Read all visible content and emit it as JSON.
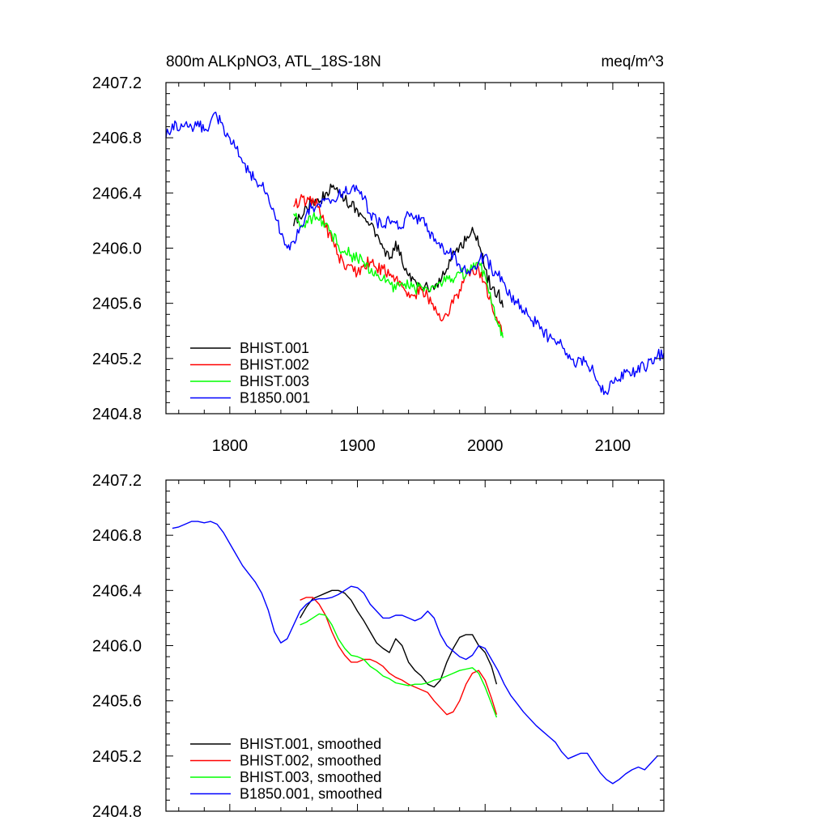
{
  "chart_data": [
    {
      "type": "line",
      "title": "800m ALKpNO3, ATL_18S-18N",
      "units": "meq/m^3",
      "xlim": [
        1750,
        2140
      ],
      "ylim": [
        2404.8,
        2407.2
      ],
      "x_ticks": [
        "1800",
        "1900",
        "2000",
        "2100"
      ],
      "y_ticks": [
        "2404.8",
        "2405.2",
        "2405.6",
        "2406.0",
        "2406.4",
        "2406.8",
        "2407.2"
      ],
      "legend_position": "bottom-left",
      "series": [
        {
          "name": "BHIST.001",
          "color": "#000000",
          "x": [
            1850,
            1855,
            1860,
            1865,
            1870,
            1875,
            1880,
            1885,
            1890,
            1895,
            1900,
            1905,
            1910,
            1915,
            1920,
            1925,
            1930,
            1935,
            1940,
            1945,
            1950,
            1955,
            1960,
            1965,
            1970,
            1975,
            1980,
            1985,
            1990,
            1995,
            2000,
            2005,
            2010,
            2014
          ],
          "values": [
            2406.16,
            2406.22,
            2406.3,
            2406.35,
            2406.33,
            2406.4,
            2406.44,
            2406.4,
            2406.35,
            2406.3,
            2406.28,
            2406.22,
            2406.17,
            2406.1,
            2406.0,
            2405.92,
            2406.05,
            2405.9,
            2405.8,
            2405.77,
            2405.7,
            2405.72,
            2405.7,
            2405.75,
            2405.85,
            2405.98,
            2406.02,
            2406.05,
            2406.15,
            2406.02,
            2405.85,
            2405.7,
            2405.68,
            2405.57
          ]
        },
        {
          "name": "BHIST.002",
          "color": "#ff0000",
          "x": [
            1850,
            1855,
            1860,
            1865,
            1870,
            1875,
            1880,
            1885,
            1890,
            1895,
            1900,
            1905,
            1910,
            1915,
            1920,
            1925,
            1930,
            1935,
            1940,
            1945,
            1950,
            1955,
            1960,
            1965,
            1970,
            1975,
            1980,
            1985,
            1990,
            1995,
            2000,
            2005,
            2010,
            2014
          ],
          "values": [
            2406.3,
            2406.35,
            2406.33,
            2406.36,
            2406.3,
            2406.15,
            2406.05,
            2405.95,
            2405.85,
            2405.88,
            2405.82,
            2405.88,
            2405.9,
            2405.85,
            2405.85,
            2405.8,
            2405.78,
            2405.72,
            2405.68,
            2405.66,
            2405.7,
            2405.65,
            2405.55,
            2405.48,
            2405.52,
            2405.6,
            2405.7,
            2405.8,
            2405.85,
            2405.85,
            2405.75,
            2405.6,
            2405.45,
            2405.38
          ]
        },
        {
          "name": "BHIST.003",
          "color": "#00ff00",
          "x": [
            1850,
            1855,
            1860,
            1865,
            1870,
            1875,
            1880,
            1885,
            1890,
            1895,
            1900,
            1905,
            1910,
            1915,
            1920,
            1925,
            1930,
            1935,
            1940,
            1945,
            1950,
            1955,
            1960,
            1965,
            1970,
            1975,
            1980,
            1985,
            1990,
            1995,
            2000,
            2005,
            2010,
            2014
          ],
          "values": [
            2406.25,
            2406.15,
            2406.2,
            2406.22,
            2406.2,
            2406.18,
            2406.1,
            2406.02,
            2405.98,
            2405.95,
            2405.92,
            2405.9,
            2405.82,
            2405.8,
            2405.78,
            2405.75,
            2405.7,
            2405.75,
            2405.72,
            2405.7,
            2405.72,
            2405.7,
            2405.72,
            2405.75,
            2405.8,
            2405.75,
            2405.82,
            2405.8,
            2405.85,
            2405.9,
            2405.8,
            2405.6,
            2405.45,
            2405.35
          ]
        },
        {
          "name": "B1850.001",
          "color": "#0000ff",
          "x": [
            1750,
            1755,
            1760,
            1765,
            1770,
            1775,
            1780,
            1785,
            1790,
            1795,
            1800,
            1805,
            1810,
            1815,
            1820,
            1825,
            1830,
            1835,
            1840,
            1845,
            1850,
            1855,
            1860,
            1865,
            1870,
            1875,
            1880,
            1885,
            1890,
            1895,
            1900,
            1905,
            1910,
            1915,
            1920,
            1925,
            1930,
            1935,
            1940,
            1945,
            1950,
            1955,
            1960,
            1965,
            1970,
            1975,
            1980,
            1985,
            1990,
            1995,
            2000,
            2005,
            2010,
            2015,
            2020,
            2025,
            2030,
            2035,
            2040,
            2045,
            2050,
            2055,
            2060,
            2065,
            2070,
            2075,
            2080,
            2085,
            2090,
            2095,
            2100,
            2105,
            2110,
            2115,
            2120,
            2125,
            2130,
            2135,
            2140
          ],
          "values": [
            2406.8,
            2406.9,
            2406.85,
            2406.9,
            2406.88,
            2406.92,
            2406.85,
            2406.92,
            2406.95,
            2406.88,
            2406.8,
            2406.72,
            2406.62,
            2406.55,
            2406.5,
            2406.45,
            2406.38,
            2406.25,
            2406.1,
            2406.0,
            2406.05,
            2406.15,
            2406.25,
            2406.3,
            2406.32,
            2406.36,
            2406.35,
            2406.38,
            2406.4,
            2406.42,
            2406.42,
            2406.36,
            2406.25,
            2406.2,
            2406.15,
            2406.2,
            2406.18,
            2406.15,
            2406.25,
            2406.22,
            2406.22,
            2406.12,
            2406.05,
            2406.0,
            2405.98,
            2405.95,
            2405.88,
            2405.82,
            2405.85,
            2405.9,
            2405.95,
            2405.85,
            2405.8,
            2405.75,
            2405.65,
            2405.6,
            2405.55,
            2405.5,
            2405.45,
            2405.4,
            2405.35,
            2405.32,
            2405.3,
            2405.2,
            2405.15,
            2405.2,
            2405.15,
            2405.1,
            2405.0,
            2404.95,
            2405.02,
            2405.05,
            2405.1,
            2405.08,
            2405.15,
            2405.12,
            2405.2,
            2405.22,
            2405.24
          ]
        }
      ]
    },
    {
      "type": "line",
      "xlim": [
        1750,
        2140
      ],
      "ylim": [
        2404.8,
        2407.2
      ],
      "y_ticks": [
        "2404.8",
        "2405.2",
        "2405.6",
        "2406.0",
        "2406.4",
        "2406.8",
        "2407.2"
      ],
      "legend_position": "bottom-left",
      "series": [
        {
          "name": "BHIST.001, smoothed",
          "color": "#000000",
          "x": [
            1855,
            1860,
            1865,
            1870,
            1875,
            1880,
            1885,
            1890,
            1895,
            1900,
            1905,
            1910,
            1915,
            1920,
            1925,
            1930,
            1935,
            1940,
            1945,
            1950,
            1955,
            1960,
            1965,
            1970,
            1975,
            1980,
            1985,
            1990,
            1995,
            2000,
            2005,
            2009
          ],
          "values": [
            2406.2,
            2406.28,
            2406.34,
            2406.36,
            2406.38,
            2406.4,
            2406.4,
            2406.38,
            2406.33,
            2406.25,
            2406.18,
            2406.1,
            2406.02,
            2405.98,
            2405.95,
            2406.05,
            2406.0,
            2405.88,
            2405.82,
            2405.78,
            2405.72,
            2405.7,
            2405.75,
            2405.88,
            2405.98,
            2406.06,
            2406.08,
            2406.08,
            2406.0,
            2405.95,
            2405.85,
            2405.72
          ]
        },
        {
          "name": "BHIST.002, smoothed",
          "color": "#ff0000",
          "x": [
            1855,
            1860,
            1865,
            1870,
            1875,
            1880,
            1885,
            1890,
            1895,
            1900,
            1905,
            1910,
            1915,
            1920,
            1925,
            1930,
            1935,
            1940,
            1945,
            1950,
            1955,
            1960,
            1965,
            1970,
            1975,
            1980,
            1985,
            1990,
            1995,
            2000,
            2005,
            2009
          ],
          "values": [
            2406.33,
            2406.35,
            2406.35,
            2406.3,
            2406.22,
            2406.1,
            2406.0,
            2405.93,
            2405.88,
            2405.88,
            2405.9,
            2405.9,
            2405.88,
            2405.85,
            2405.8,
            2405.77,
            2405.75,
            2405.72,
            2405.7,
            2405.68,
            2405.66,
            2405.6,
            2405.55,
            2405.5,
            2405.52,
            2405.6,
            2405.72,
            2405.8,
            2405.82,
            2405.75,
            2405.62,
            2405.5
          ]
        },
        {
          "name": "BHIST.003, smoothed",
          "color": "#00ff00",
          "x": [
            1855,
            1860,
            1865,
            1870,
            1875,
            1880,
            1885,
            1890,
            1895,
            1900,
            1905,
            1910,
            1915,
            1920,
            1925,
            1930,
            1935,
            1940,
            1945,
            1950,
            1955,
            1960,
            1965,
            1970,
            1975,
            1980,
            1985,
            1990,
            1995,
            2000,
            2005,
            2009
          ],
          "values": [
            2406.15,
            2406.17,
            2406.2,
            2406.23,
            2406.22,
            2406.15,
            2406.05,
            2405.98,
            2405.93,
            2405.92,
            2405.9,
            2405.85,
            2405.82,
            2405.78,
            2405.76,
            2405.73,
            2405.72,
            2405.71,
            2405.72,
            2405.72,
            2405.73,
            2405.75,
            2405.76,
            2405.78,
            2405.8,
            2405.82,
            2405.83,
            2405.84,
            2405.8,
            2405.7,
            2405.58,
            2405.48
          ]
        },
        {
          "name": "B1850.001, smoothed",
          "color": "#0000ff",
          "x": [
            1755,
            1760,
            1765,
            1770,
            1775,
            1780,
            1785,
            1790,
            1795,
            1800,
            1805,
            1810,
            1815,
            1820,
            1825,
            1830,
            1835,
            1840,
            1845,
            1850,
            1855,
            1860,
            1865,
            1870,
            1875,
            1880,
            1885,
            1890,
            1895,
            1900,
            1905,
            1910,
            1915,
            1920,
            1925,
            1930,
            1935,
            1940,
            1945,
            1950,
            1955,
            1960,
            1965,
            1970,
            1975,
            1980,
            1985,
            1990,
            1995,
            2000,
            2005,
            2010,
            2015,
            2020,
            2025,
            2030,
            2035,
            2040,
            2045,
            2050,
            2055,
            2060,
            2065,
            2070,
            2075,
            2080,
            2085,
            2090,
            2095,
            2100,
            2105,
            2110,
            2115,
            2120,
            2125,
            2130,
            2135
          ],
          "values": [
            2406.85,
            2406.86,
            2406.88,
            2406.9,
            2406.9,
            2406.89,
            2406.9,
            2406.88,
            2406.82,
            2406.74,
            2406.66,
            2406.58,
            2406.52,
            2406.46,
            2406.38,
            2406.26,
            2406.1,
            2406.02,
            2406.05,
            2406.15,
            2406.25,
            2406.3,
            2406.33,
            2406.34,
            2406.34,
            2406.35,
            2406.37,
            2406.4,
            2406.43,
            2406.42,
            2406.38,
            2406.3,
            2406.25,
            2406.2,
            2406.2,
            2406.22,
            2406.22,
            2406.2,
            2406.18,
            2406.2,
            2406.25,
            2406.2,
            2406.08,
            2406.0,
            2405.96,
            2405.92,
            2405.9,
            2405.93,
            2406.0,
            2405.98,
            2405.9,
            2405.82,
            2405.72,
            2405.64,
            2405.58,
            2405.52,
            2405.47,
            2405.42,
            2405.38,
            2405.34,
            2405.3,
            2405.23,
            2405.18,
            2405.2,
            2405.22,
            2405.22,
            2405.15,
            2405.08,
            2405.03,
            2405.0,
            2405.03,
            2405.07,
            2405.1,
            2405.12,
            2405.1,
            2405.15,
            2405.2
          ]
        }
      ]
    }
  ]
}
